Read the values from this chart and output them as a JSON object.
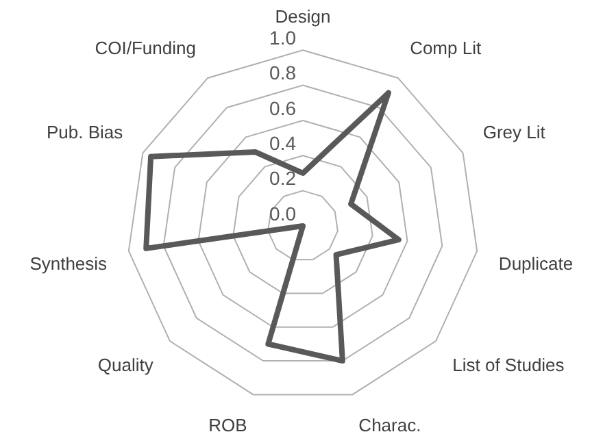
{
  "chart_data": {
    "type": "radar",
    "categories": [
      "Design",
      "Comp Lit",
      "Grey Lit",
      "Duplicate",
      "List of Studies",
      "Charac.",
      "ROB",
      "Quality",
      "Synthesis",
      "Pub. Bias",
      "COI/Funding"
    ],
    "series": [
      {
        "color": "#595959",
        "values": [
          0.3,
          0.9,
          0.3,
          0.55,
          0.25,
          0.8,
          0.7,
          0,
          0.9,
          0.95,
          0.5
        ]
      }
    ],
    "ylim": [
      0,
      1
    ],
    "yticks": [
      {
        "value": 0,
        "label": "0.0"
      },
      {
        "value": 0.2,
        "label": "0.2"
      },
      {
        "value": 0.4,
        "label": "0.4"
      },
      {
        "value": 0.6,
        "label": "0.6"
      },
      {
        "value": 0.8,
        "label": "0.8"
      },
      {
        "value": 1,
        "label": "1.0"
      }
    ],
    "grid": true,
    "legend": false,
    "marker": "none",
    "line_style": "solid"
  }
}
